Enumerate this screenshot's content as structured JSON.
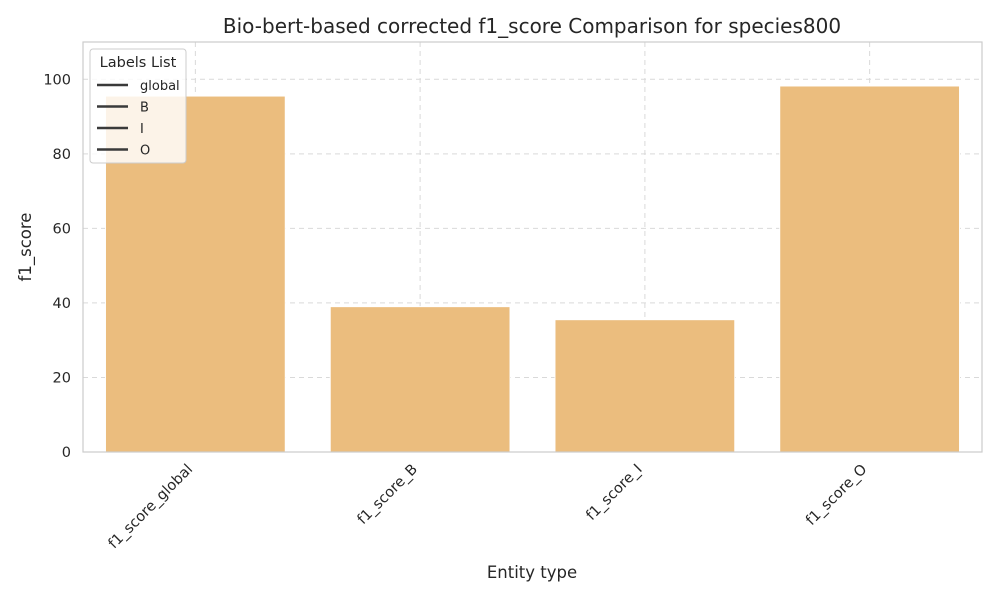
{
  "chart_data": {
    "type": "bar",
    "title": "Bio-bert-based corrected f1_score Comparison for species800",
    "xlabel": "Entity type",
    "ylabel": "f1_score",
    "categories": [
      "f1_score_global",
      "f1_score_B",
      "f1_score_I",
      "f1_score_O"
    ],
    "values": [
      95.5,
      39.0,
      35.5,
      98.2
    ],
    "ylim": [
      0,
      110
    ],
    "yticks": [
      0,
      20,
      40,
      60,
      80,
      100
    ],
    "grid": true,
    "bar_color": "#ebbd7e",
    "legend": {
      "title": "Labels List",
      "placement": "top-left",
      "entries": [
        "global",
        "B",
        "I",
        "O"
      ]
    }
  }
}
